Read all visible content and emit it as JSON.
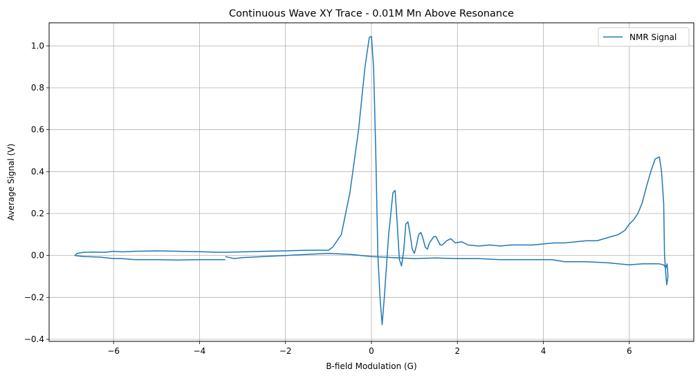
{
  "chart_data": {
    "type": "line",
    "title": "Continuous Wave XY Trace - 0.01M Mn Above Resonance",
    "xlabel": "B-field Modulation (G)",
    "ylabel": "Average Signal (V)",
    "xlim": [
      -7.5,
      7.5
    ],
    "ylim": [
      -0.41,
      1.11
    ],
    "xticks": [
      -6,
      -4,
      -2,
      0,
      2,
      4,
      6
    ],
    "yticks": [
      -0.4,
      -0.2,
      0.0,
      0.2,
      0.4,
      0.6,
      0.8,
      1.0
    ],
    "xtick_labels": [
      "−6",
      "−4",
      "−2",
      "0",
      "2",
      "4",
      "6"
    ],
    "ytick_labels": [
      "−0.4",
      "−0.2",
      "0.0",
      "0.2",
      "0.4",
      "0.6",
      "0.8",
      "1.0"
    ],
    "grid": true,
    "legend_position": "top-right",
    "series": [
      {
        "name": "NMR Signal",
        "color": "#1f77b4",
        "x": [
          -3.4,
          -3.6,
          -4.0,
          -4.5,
          -5.0,
          -5.5,
          -5.8,
          -6.0,
          -6.3,
          -6.7,
          -6.9,
          -6.85,
          -6.7,
          -6.5,
          -6.2,
          -6.0,
          -5.8,
          -5.5,
          -5.0,
          -4.5,
          -4.0,
          -3.5,
          -3.0,
          -2.5,
          -2.0,
          -1.5,
          -1.0,
          -0.9,
          -0.7,
          -0.5,
          -0.3,
          -0.15,
          -0.05,
          0.0,
          0.05,
          0.1,
          0.15,
          0.2,
          0.25,
          0.3,
          0.4,
          0.5,
          0.55,
          0.6,
          0.65,
          0.7,
          0.75,
          0.8,
          0.85,
          0.9,
          0.95,
          1.0,
          1.05,
          1.1,
          1.15,
          1.2,
          1.25,
          1.3,
          1.35,
          1.45,
          1.5,
          1.6,
          1.65,
          1.75,
          1.85,
          1.95,
          2.1,
          2.25,
          2.5,
          2.75,
          3.0,
          3.25,
          3.5,
          3.75,
          4.0,
          4.25,
          4.5,
          4.75,
          5.0,
          5.25,
          5.5,
          5.75,
          5.9,
          6.0,
          6.1,
          6.2,
          6.3,
          6.4,
          6.5,
          6.6,
          6.7,
          6.75,
          6.8,
          6.82,
          6.85,
          6.87,
          6.9,
          6.88,
          6.85,
          6.8,
          6.7,
          6.5,
          6.3,
          6.0,
          5.5,
          5.0,
          4.5,
          4.2,
          4.0,
          3.5,
          3.0,
          2.5,
          2.0,
          1.5,
          1.0,
          0.5,
          0.0,
          -0.5,
          -1.0,
          -1.5,
          -2.0,
          -2.5,
          -3.0,
          -3.2,
          -3.4
        ],
        "y": [
          -0.02,
          -0.02,
          -0.02,
          -0.022,
          -0.02,
          -0.02,
          -0.015,
          -0.015,
          -0.008,
          -0.005,
          0.0,
          0.01,
          0.015,
          0.016,
          0.015,
          0.02,
          0.017,
          0.02,
          0.022,
          0.02,
          0.018,
          0.015,
          0.017,
          0.02,
          0.022,
          0.025,
          0.025,
          0.04,
          0.1,
          0.3,
          0.6,
          0.9,
          1.04,
          1.045,
          0.9,
          0.5,
          0.0,
          -0.2,
          -0.33,
          -0.2,
          0.1,
          0.3,
          0.31,
          0.15,
          -0.02,
          -0.05,
          0.02,
          0.15,
          0.16,
          0.1,
          0.03,
          0.01,
          0.05,
          0.1,
          0.11,
          0.08,
          0.04,
          0.03,
          0.06,
          0.09,
          0.09,
          0.05,
          0.05,
          0.07,
          0.08,
          0.06,
          0.065,
          0.05,
          0.045,
          0.05,
          0.045,
          0.05,
          0.05,
          0.05,
          0.055,
          0.06,
          0.06,
          0.065,
          0.07,
          0.07,
          0.085,
          0.1,
          0.12,
          0.15,
          0.17,
          0.2,
          0.25,
          0.33,
          0.4,
          0.46,
          0.47,
          0.4,
          0.25,
          0.0,
          -0.09,
          -0.14,
          -0.1,
          -0.04,
          -0.06,
          -0.045,
          -0.04,
          -0.04,
          -0.04,
          -0.045,
          -0.035,
          -0.03,
          -0.03,
          -0.02,
          -0.02,
          -0.02,
          -0.02,
          -0.015,
          -0.015,
          -0.012,
          -0.015,
          -0.01,
          -0.005,
          0.005,
          0.01,
          0.005,
          0.0,
          -0.005,
          -0.01,
          -0.015,
          -0.005
        ]
      }
    ]
  }
}
